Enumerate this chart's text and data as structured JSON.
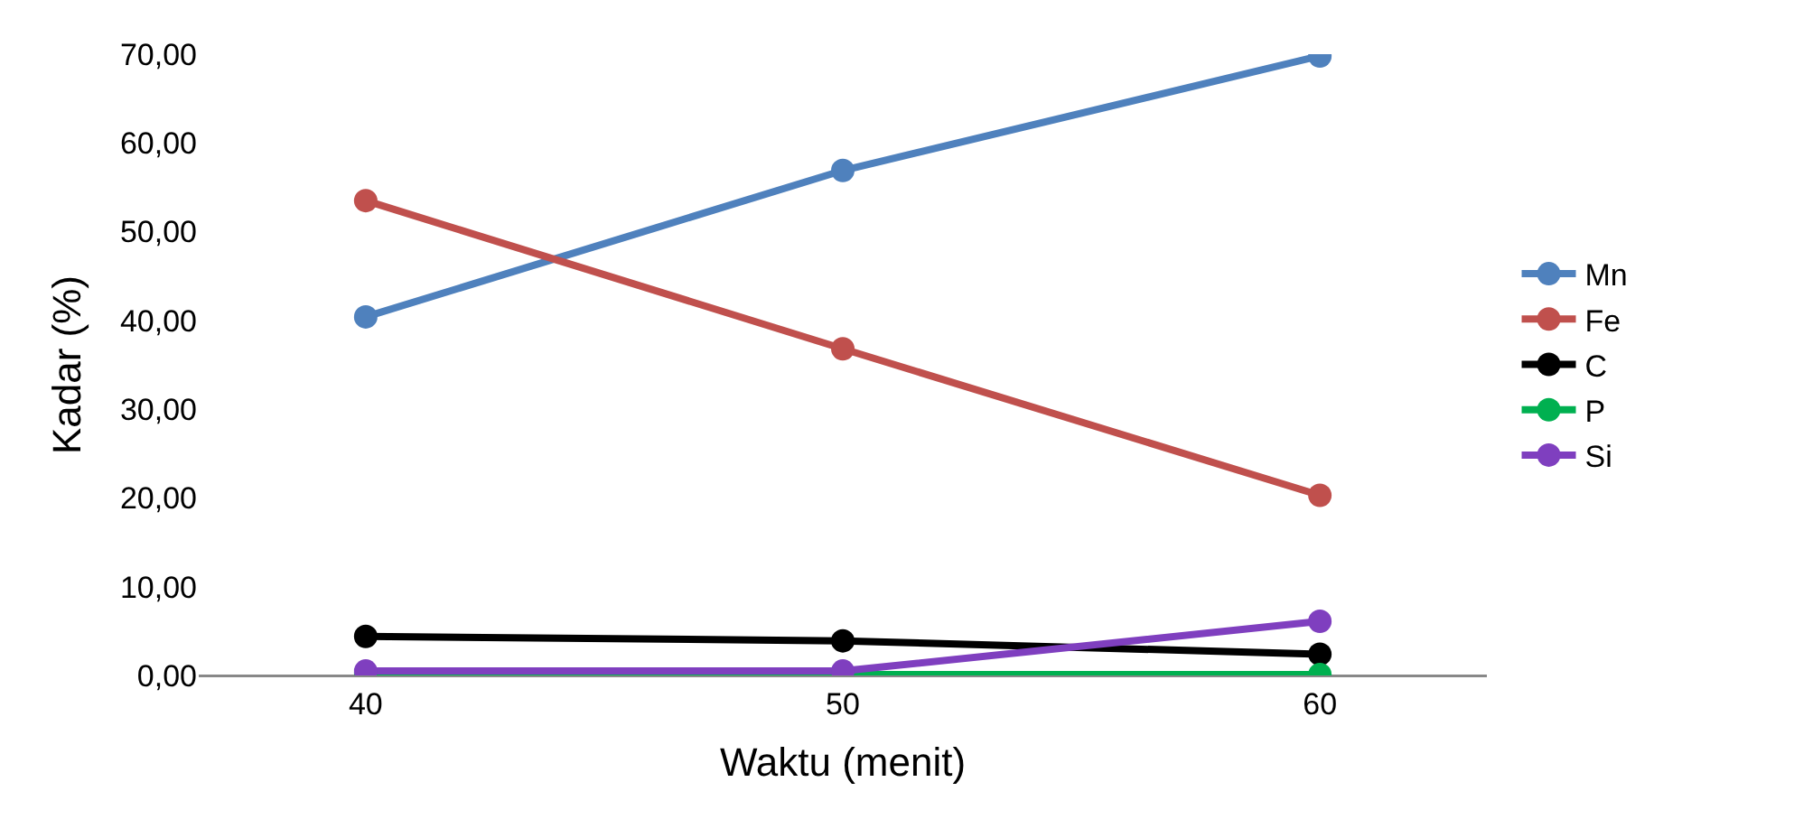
{
  "chart_data": {
    "type": "line",
    "xlabel": "Waktu (menit)",
    "ylabel": "Kadar (%)",
    "categories": [
      "40",
      "50",
      "60"
    ],
    "series": [
      {
        "name": "Mn",
        "color": "#4f81bd",
        "values": [
          40.4,
          56.9,
          69.8
        ]
      },
      {
        "name": "Fe",
        "color": "#c0504d",
        "values": [
          53.5,
          36.8,
          20.3
        ]
      },
      {
        "name": "C",
        "color": "#000000",
        "values": [
          4.4,
          3.9,
          2.4
        ]
      },
      {
        "name": "P",
        "color": "#00b050",
        "values": [
          0.3,
          0.1,
          0.1
        ]
      },
      {
        "name": "Si",
        "color": "#7f3fbf",
        "values": [
          0.5,
          0.5,
          6.1
        ]
      }
    ],
    "ylim": [
      0,
      70
    ],
    "yticks": [
      {
        "value": 0,
        "label": "0,00"
      },
      {
        "value": 10,
        "label": "10,00"
      },
      {
        "value": 20,
        "label": "20,00"
      },
      {
        "value": 30,
        "label": "30,00"
      },
      {
        "value": 40,
        "label": "40,00"
      },
      {
        "value": 50,
        "label": "50,00"
      },
      {
        "value": 60,
        "label": "60,00"
      },
      {
        "value": 70,
        "label": "70,00"
      }
    ],
    "legend": "right",
    "marker": "circle",
    "line_style": "solid"
  }
}
